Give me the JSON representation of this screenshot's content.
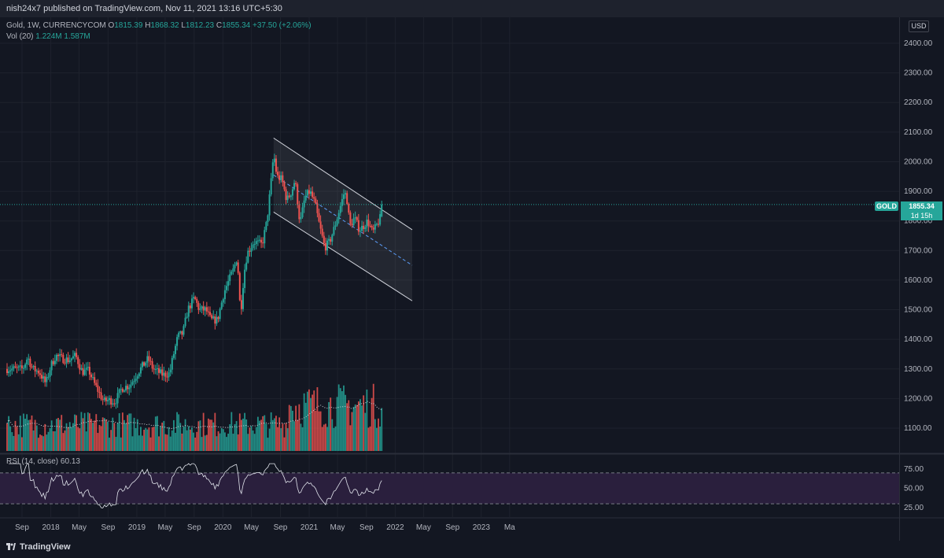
{
  "header": {
    "published": "nish24x7 published on TradingView.com, Nov 11, 2021 13:16 UTC+5:30"
  },
  "legend": {
    "symbol": "Gold, 1W, CURRENCYCOM",
    "o_label": "O",
    "o": "1815.39",
    "h_label": "H",
    "h": "1868.32",
    "l_label": "L",
    "l": "1812.23",
    "c_label": "C",
    "c": "1855.34",
    "change": "+37.50 (+2.06%)",
    "vol_label": "Vol (20)",
    "vol_value": "1.224M",
    "vol_ma": "1.587M",
    "rsi_label": "RSI (14, close)",
    "rsi_value": "60.13"
  },
  "price_scale": {
    "currency": "USD",
    "symbol_tag": "GOLD",
    "last_price": "1855.34",
    "countdown": "1d 15h"
  },
  "brand": {
    "name": "TradingView"
  },
  "colors": {
    "up": "#26a69a",
    "down": "#ef5350",
    "background": "#131722",
    "grid": "#1e222d",
    "rsi_line": "#e0e3eb",
    "rsi_band": "#2a1f3d",
    "channel": "#d1d4dc"
  },
  "chart_data": [
    {
      "type": "candlestick",
      "title": "Gold, 1W, CURRENCYCOM",
      "x_axis": {
        "ticks": [
          "Sep",
          "2018",
          "May",
          "Sep",
          "2019",
          "May",
          "Sep",
          "2020",
          "May",
          "Sep",
          "2021",
          "May",
          "Sep",
          "2022",
          "May",
          "Sep",
          "2023",
          "Ma"
        ]
      },
      "y_axis": {
        "ticks": [
          2400,
          2300,
          2200,
          2100,
          2000,
          1900,
          1800,
          1700,
          1600,
          1500,
          1400,
          1300,
          1200,
          1100
        ],
        "range": [
          1025,
          2470
        ]
      },
      "last_price": 1855.34,
      "anchors": [
        {
          "d": "2017-09-04",
          "p": 1300
        },
        {
          "d": "2017-09-25",
          "p": 1340
        },
        {
          "d": "2017-10-16",
          "p": 1300
        },
        {
          "d": "2017-11-13",
          "p": 1290
        },
        {
          "d": "2017-12-11",
          "p": 1250
        },
        {
          "d": "2018-01-01",
          "p": 1310
        },
        {
          "d": "2018-01-22",
          "p": 1345
        },
        {
          "d": "2018-02-19",
          "p": 1335
        },
        {
          "d": "2018-03-19",
          "p": 1330
        },
        {
          "d": "2018-04-16",
          "p": 1345
        },
        {
          "d": "2018-05-14",
          "p": 1290
        },
        {
          "d": "2018-06-11",
          "p": 1295
        },
        {
          "d": "2018-07-02",
          "p": 1255
        },
        {
          "d": "2018-08-13",
          "p": 1190
        },
        {
          "d": "2018-09-03",
          "p": 1195
        },
        {
          "d": "2018-10-01",
          "p": 1190
        },
        {
          "d": "2018-10-29",
          "p": 1235
        },
        {
          "d": "2018-12-03",
          "p": 1245
        },
        {
          "d": "2019-01-07",
          "p": 1290
        },
        {
          "d": "2019-02-18",
          "p": 1335
        },
        {
          "d": "2019-03-11",
          "p": 1300
        },
        {
          "d": "2019-04-22",
          "p": 1280
        },
        {
          "d": "2019-05-20",
          "p": 1285
        },
        {
          "d": "2019-06-03",
          "p": 1340
        },
        {
          "d": "2019-06-24",
          "p": 1410
        },
        {
          "d": "2019-07-15",
          "p": 1420
        },
        {
          "d": "2019-08-05",
          "p": 1500
        },
        {
          "d": "2019-09-02",
          "p": 1540
        },
        {
          "d": "2019-09-23",
          "p": 1500
        },
        {
          "d": "2019-10-21",
          "p": 1500
        },
        {
          "d": "2019-11-11",
          "p": 1465
        },
        {
          "d": "2019-12-09",
          "p": 1465
        },
        {
          "d": "2020-01-06",
          "p": 1560
        },
        {
          "d": "2020-02-17",
          "p": 1640
        },
        {
          "d": "2020-03-02",
          "p": 1680
        },
        {
          "d": "2020-03-16",
          "p": 1480
        },
        {
          "d": "2020-03-30",
          "p": 1620
        },
        {
          "d": "2020-04-13",
          "p": 1690
        },
        {
          "d": "2020-05-11",
          "p": 1730
        },
        {
          "d": "2020-06-15",
          "p": 1720
        },
        {
          "d": "2020-07-06",
          "p": 1800
        },
        {
          "d": "2020-07-27",
          "p": 1960
        },
        {
          "d": "2020-08-03",
          "p": 2030
        },
        {
          "d": "2020-08-17",
          "p": 1950
        },
        {
          "d": "2020-09-07",
          "p": 1940
        },
        {
          "d": "2020-09-28",
          "p": 1870
        },
        {
          "d": "2020-10-19",
          "p": 1900
        },
        {
          "d": "2020-11-02",
          "p": 1940
        },
        {
          "d": "2020-11-23",
          "p": 1790
        },
        {
          "d": "2020-12-14",
          "p": 1880
        },
        {
          "d": "2021-01-04",
          "p": 1900
        },
        {
          "d": "2021-01-25",
          "p": 1860
        },
        {
          "d": "2021-02-15",
          "p": 1780
        },
        {
          "d": "2021-03-08",
          "p": 1710
        },
        {
          "d": "2021-03-29",
          "p": 1730
        },
        {
          "d": "2021-04-19",
          "p": 1780
        },
        {
          "d": "2021-05-10",
          "p": 1840
        },
        {
          "d": "2021-05-31",
          "p": 1900
        },
        {
          "d": "2021-06-14",
          "p": 1860
        },
        {
          "d": "2021-06-21",
          "p": 1780
        },
        {
          "d": "2021-07-12",
          "p": 1810
        },
        {
          "d": "2021-08-02",
          "p": 1770
        },
        {
          "d": "2021-08-16",
          "p": 1780
        },
        {
          "d": "2021-09-06",
          "p": 1800
        },
        {
          "d": "2021-09-27",
          "p": 1760
        },
        {
          "d": "2021-10-18",
          "p": 1790
        },
        {
          "d": "2021-11-01",
          "p": 1815
        },
        {
          "d": "2021-11-08",
          "p": 1855
        }
      ],
      "channel": {
        "upper": [
          {
            "d": "2020-08-03",
            "p": 2080
          },
          {
            "d": "2022-03-14",
            "p": 1770
          }
        ],
        "lower": [
          {
            "d": "2020-08-03",
            "p": 1830
          },
          {
            "d": "2022-03-14",
            "p": 1530
          }
        ],
        "mid": [
          {
            "d": "2020-08-03",
            "p": 1955
          },
          {
            "d": "2022-03-14",
            "p": 1650
          }
        ]
      }
    },
    {
      "type": "bar",
      "title": "Vol (20)",
      "series": [
        {
          "name": "Vol (20)",
          "last": "1.224M",
          "ma": "1.587M"
        }
      ]
    },
    {
      "type": "line",
      "title": "RSI (14, close)",
      "y_axis": {
        "ticks": [
          75.0,
          50.0,
          25.0
        ],
        "range": [
          18,
          85
        ],
        "band": [
          30,
          70
        ]
      },
      "last": 60.13
    }
  ]
}
